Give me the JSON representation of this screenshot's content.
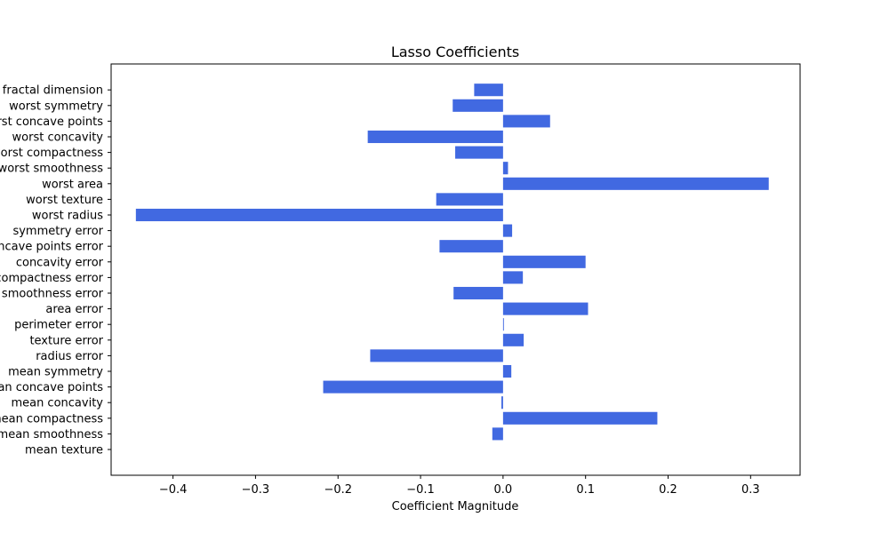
{
  "chart_data": {
    "type": "bar",
    "orientation": "horizontal",
    "title": "Lasso Coefficients",
    "xlabel": "Coefficient Magnitude",
    "ylabel": "",
    "xlim": [
      -0.475,
      0.36
    ],
    "xticks": [
      -0.4,
      -0.3,
      -0.2,
      -0.1,
      0.0,
      0.1,
      0.2,
      0.3
    ],
    "xtick_labels": [
      "−0.4",
      "−0.3",
      "−0.2",
      "−0.1",
      "0.0",
      "0.1",
      "0.2",
      "0.3"
    ],
    "grid": false,
    "bar_color": "#4169e1",
    "categories": [
      "mean texture",
      "mean smoothness",
      "mean compactness",
      "mean concavity",
      "mean concave points",
      "mean symmetry",
      "radius error",
      "texture error",
      "perimeter error",
      "area error",
      "smoothness error",
      "compactness error",
      "concavity error",
      "concave points error",
      "symmetry error",
      "worst radius",
      "worst texture",
      "worst area",
      "worst smoothness",
      "worst compactness",
      "worst concavity",
      "worst concave points",
      "worst symmetry",
      "worst fractal dimension"
    ],
    "values": [
      0.0,
      -0.013,
      0.187,
      -0.002,
      -0.218,
      0.01,
      -0.161,
      0.025,
      0.001,
      0.103,
      -0.06,
      0.024,
      0.1,
      -0.077,
      0.011,
      -0.445,
      -0.081,
      0.322,
      0.006,
      -0.058,
      -0.164,
      0.057,
      -0.061,
      -0.035
    ]
  }
}
